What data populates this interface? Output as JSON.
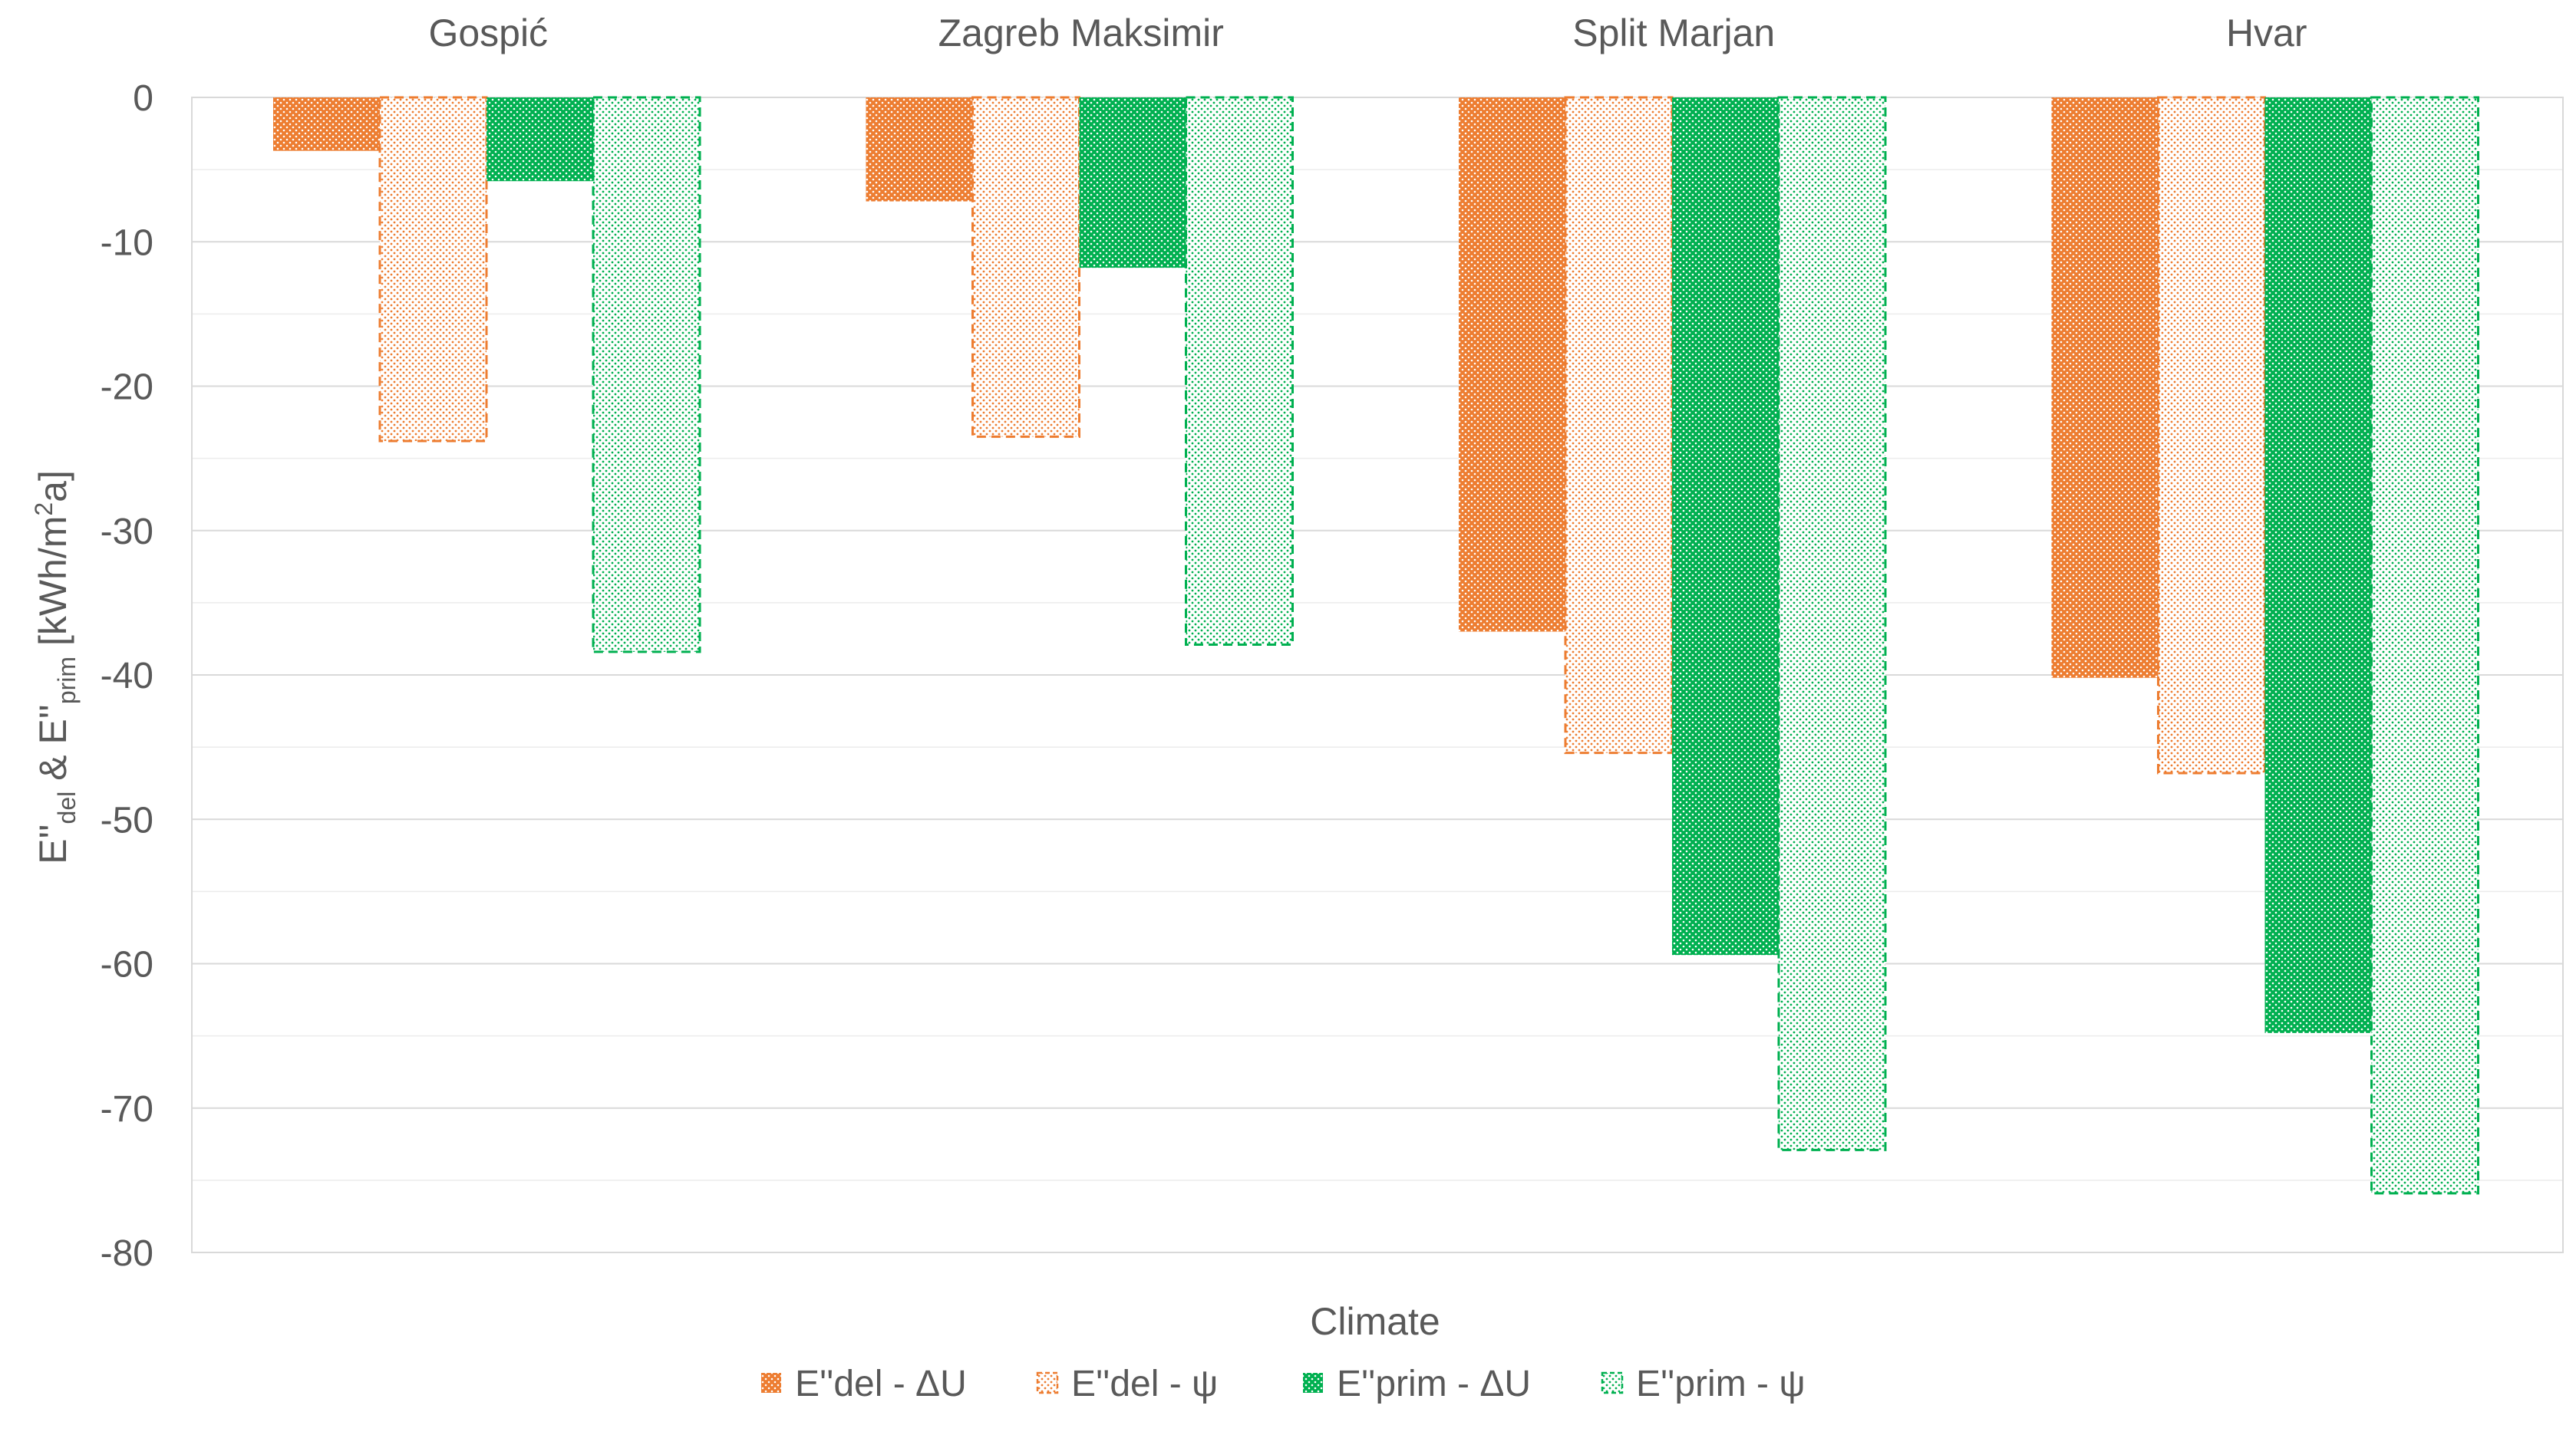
{
  "chart_data": {
    "type": "bar",
    "categories": [
      "Gospić",
      "Zagreb Maksimir",
      "Split Marjan",
      "Hvar"
    ],
    "xlabel": "Climate",
    "ylabel": {
      "prefix": "E''",
      "sub1": "del",
      "mid": " & E''",
      "sub2": "prim",
      "unit_start": " [kWh/m",
      "sup": "2",
      "unit_end": "a]"
    },
    "ylim": [
      -80,
      0
    ],
    "yticks": [
      0,
      -10,
      -20,
      -30,
      -40,
      -50,
      -60,
      -70,
      -80
    ],
    "ytick_labels": [
      "0",
      "-10",
      "-20",
      "-30",
      "-40",
      "-50",
      "-60",
      "-70",
      "-80"
    ],
    "grid": true,
    "legend_position": "bottom",
    "series": [
      {
        "name": "E''del - ΔU",
        "values": [
          -3.7,
          -7.2,
          -37.0,
          -40.2
        ],
        "color": "#ED7D31",
        "style": "solid"
      },
      {
        "name": "E''del - ψ",
        "values": [
          -23.8,
          -23.5,
          -45.4,
          -46.8
        ],
        "color": "#ED7D31",
        "style": "dashed"
      },
      {
        "name": "E''prim - ΔU",
        "values": [
          -5.8,
          -11.8,
          -59.4,
          -64.8
        ],
        "color": "#00B050",
        "style": "solid"
      },
      {
        "name": "E''prim - ψ",
        "values": [
          -38.4,
          -37.9,
          -72.9,
          -75.9
        ],
        "color": "#00B050",
        "style": "dashed"
      }
    ]
  }
}
